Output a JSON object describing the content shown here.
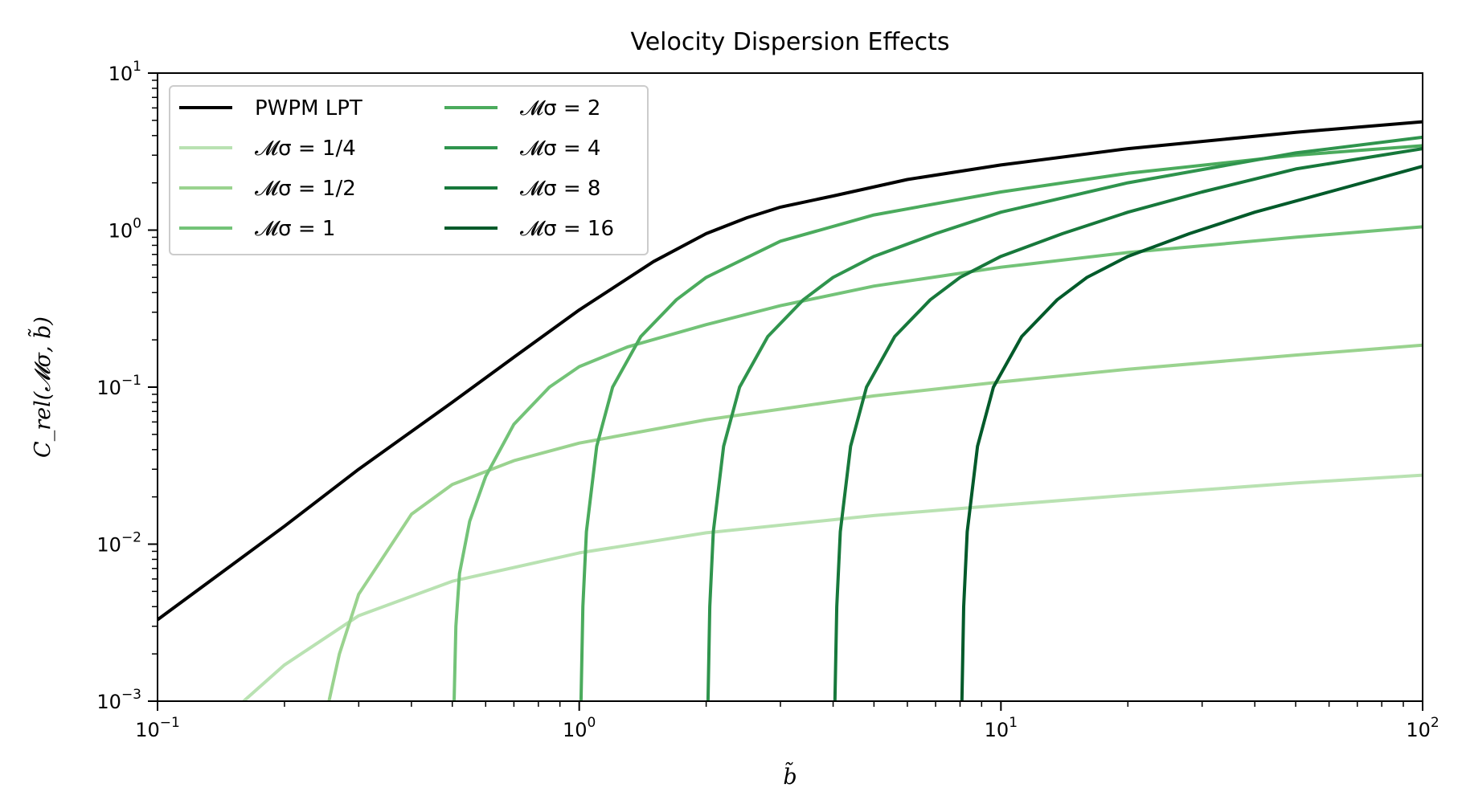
{
  "chart_data": {
    "type": "line",
    "title": "Velocity Dispersion Effects",
    "xlabel": "b̃",
    "ylabel": "C_rel(𝓜σ, b̃)",
    "xscale": "log",
    "yscale": "log",
    "xlim": [
      0.1,
      100
    ],
    "ylim": [
      0.001,
      10
    ],
    "x_ticks": [
      {
        "value": 0.1,
        "base": "10",
        "exp": "−1"
      },
      {
        "value": 1,
        "base": "10",
        "exp": "0"
      },
      {
        "value": 10,
        "base": "10",
        "exp": "1"
      },
      {
        "value": 100,
        "base": "10",
        "exp": "2"
      }
    ],
    "y_ticks": [
      {
        "value": 0.001,
        "base": "10",
        "exp": "−3"
      },
      {
        "value": 0.01,
        "base": "10",
        "exp": "−2"
      },
      {
        "value": 0.1,
        "base": "10",
        "exp": "−1"
      },
      {
        "value": 1,
        "base": "10",
        "exp": "0"
      },
      {
        "value": 10,
        "base": "10",
        "exp": "1"
      }
    ],
    "legend_position": "top-left",
    "legend_columns": 2,
    "series": [
      {
        "name": "PWPM LPT",
        "label_text": "PWPM LPT",
        "color": "#000000",
        "x": [
          0.1,
          0.2,
          0.3,
          0.5,
          0.7,
          1.0,
          1.5,
          2.0,
          2.5,
          3.0,
          4.0,
          6.0,
          10,
          20,
          50,
          100
        ],
        "y": [
          0.0033,
          0.013,
          0.03,
          0.08,
          0.155,
          0.31,
          0.63,
          0.95,
          1.2,
          1.4,
          1.65,
          2.1,
          2.6,
          3.3,
          4.2,
          4.9
        ]
      },
      {
        "name": "Mσ = 1/4",
        "label_text": "𝓜σ = 1/4",
        "color": "#b9e2b2",
        "x": [
          0.16,
          0.2,
          0.3,
          0.5,
          1.0,
          2.0,
          5.0,
          10,
          20,
          50,
          100
        ],
        "y": [
          0.001,
          0.0017,
          0.0035,
          0.0058,
          0.0088,
          0.0118,
          0.0152,
          0.0177,
          0.0205,
          0.0245,
          0.0275
        ]
      },
      {
        "name": "Mσ = 1/2",
        "label_text": "𝓜σ = 1/2",
        "color": "#9ad38f",
        "x": [
          0.255,
          0.27,
          0.3,
          0.4,
          0.5,
          0.7,
          1.0,
          2.0,
          5.0,
          10,
          20,
          50,
          100
        ],
        "y": [
          0.001,
          0.002,
          0.0048,
          0.0155,
          0.024,
          0.034,
          0.044,
          0.062,
          0.088,
          0.108,
          0.13,
          0.16,
          0.185
        ]
      },
      {
        "name": "Mσ = 1",
        "label_text": "𝓜σ = 1",
        "color": "#73c378",
        "x": [
          0.505,
          0.51,
          0.52,
          0.55,
          0.6,
          0.7,
          0.85,
          1.0,
          1.3,
          2.0,
          3.0,
          5.0,
          10,
          20,
          50,
          100
        ],
        "y": [
          0.001,
          0.003,
          0.0065,
          0.014,
          0.027,
          0.058,
          0.1,
          0.135,
          0.18,
          0.25,
          0.33,
          0.44,
          0.58,
          0.72,
          0.9,
          1.05
        ]
      },
      {
        "name": "Mσ = 2",
        "label_text": "𝓜σ = 2",
        "color": "#4bab5d",
        "x": [
          1.01,
          1.02,
          1.04,
          1.1,
          1.2,
          1.4,
          1.7,
          2.0,
          3.0,
          5.0,
          10,
          20,
          50,
          100
        ],
        "y": [
          0.001,
          0.004,
          0.012,
          0.042,
          0.1,
          0.21,
          0.36,
          0.5,
          0.85,
          1.25,
          1.75,
          2.3,
          3.0,
          3.45
        ]
      },
      {
        "name": "Mσ = 4",
        "label_text": "𝓜σ = 4",
        "color": "#2f944d",
        "x": [
          2.02,
          2.04,
          2.08,
          2.2,
          2.4,
          2.8,
          3.4,
          4.0,
          5.0,
          7.0,
          10,
          20,
          50,
          100
        ],
        "y": [
          0.001,
          0.004,
          0.012,
          0.042,
          0.1,
          0.21,
          0.36,
          0.5,
          0.68,
          0.95,
          1.3,
          2.0,
          3.1,
          3.9
        ]
      },
      {
        "name": "Mσ = 8",
        "label_text": "𝓜σ = 8",
        "color": "#17783b",
        "x": [
          4.04,
          4.08,
          4.16,
          4.4,
          4.8,
          5.6,
          6.8,
          8.0,
          10,
          14,
          20,
          30,
          50,
          100
        ],
        "y": [
          0.001,
          0.004,
          0.012,
          0.042,
          0.1,
          0.21,
          0.36,
          0.5,
          0.68,
          0.95,
          1.3,
          1.75,
          2.45,
          3.3
        ]
      },
      {
        "name": "Mσ = 16",
        "label_text": "𝓜σ = 16",
        "color": "#005a2a",
        "x": [
          8.08,
          8.16,
          8.32,
          8.8,
          9.6,
          11.2,
          13.6,
          16,
          20,
          28,
          40,
          60,
          100
        ],
        "y": [
          0.001,
          0.004,
          0.012,
          0.042,
          0.1,
          0.21,
          0.36,
          0.5,
          0.68,
          0.95,
          1.3,
          1.75,
          2.55
        ]
      }
    ]
  }
}
